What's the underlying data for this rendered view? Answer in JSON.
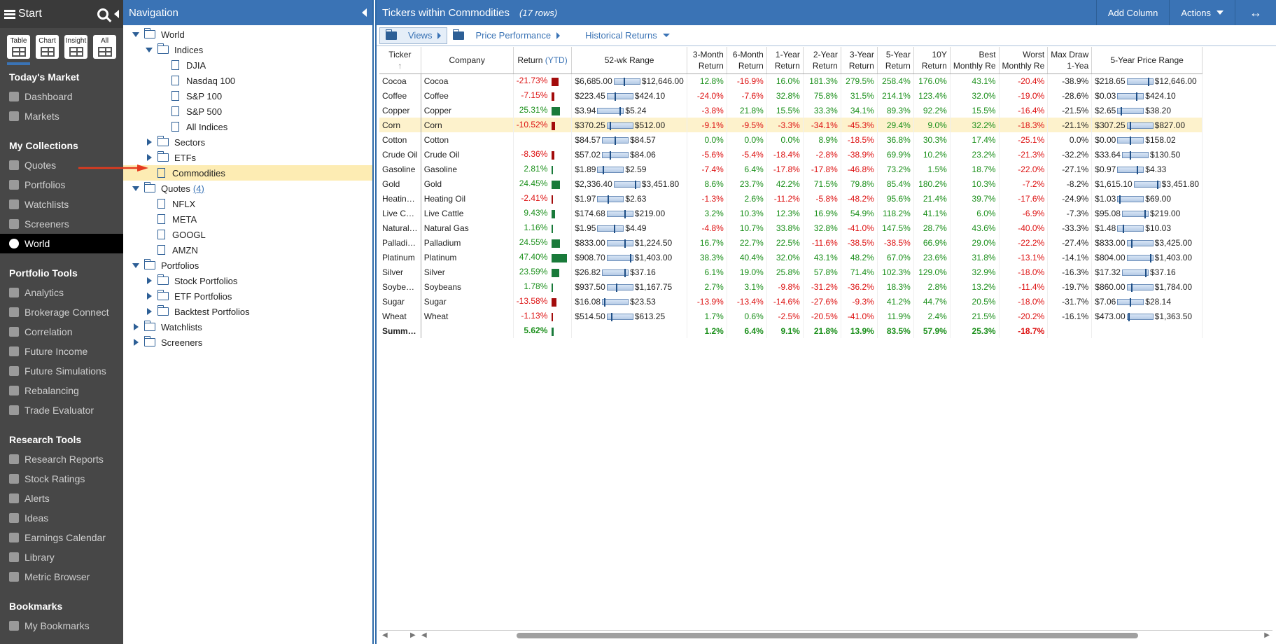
{
  "sidebar": {
    "start_label": "Start",
    "views": [
      {
        "label": "Table",
        "icon": "table-icon"
      },
      {
        "label": "Chart",
        "icon": "chart-icon"
      },
      {
        "label": "Insight",
        "icon": "insight-icon"
      },
      {
        "label": "All",
        "icon": "all-icon"
      }
    ],
    "sections": [
      {
        "heading": "Today's Market",
        "items": [
          "Dashboard",
          "Markets"
        ]
      },
      {
        "heading": "My Collections",
        "items": [
          "Quotes",
          "Portfolios",
          "Watchlists",
          "Screeners",
          "World"
        ]
      },
      {
        "heading": "Portfolio Tools",
        "items": [
          "Analytics",
          "Brokerage Connect",
          "Correlation",
          "Future Income",
          "Future Simulations",
          "Rebalancing",
          "Trade Evaluator"
        ]
      },
      {
        "heading": "Research Tools",
        "items": [
          "Research Reports",
          "Stock Ratings",
          "Alerts",
          "Ideas",
          "Earnings Calendar",
          "Library",
          "Metric Browser"
        ]
      },
      {
        "heading": "Bookmarks",
        "items": [
          "My Bookmarks"
        ]
      }
    ],
    "selected": "World"
  },
  "nav": {
    "title": "Navigation",
    "tree": {
      "world": "World",
      "indices": "Indices",
      "djia": "DJIA",
      "nasdaq": "Nasdaq 100",
      "sp100": "S&P 100",
      "sp500": "S&P 500",
      "all_indices": "All Indices",
      "sectors": "Sectors",
      "etfs": "ETFs",
      "commodities": "Commodities",
      "quotes": "Quotes",
      "quotes_count": "(4)",
      "nflx": "NFLX",
      "meta": "META",
      "googl": "GOOGL",
      "amzn": "AMZN",
      "portfolios": "Portfolios",
      "stock_portfolios": "Stock Portfolios",
      "etf_portfolios": "ETF Portfolios",
      "backtest_portfolios": "Backtest Portfolios",
      "watchlists": "Watchlists",
      "screeners": "Screeners"
    }
  },
  "main": {
    "title": "Tickers within Commodities",
    "rows_label": "(17 rows)",
    "add_column": "Add Column",
    "actions": "Actions",
    "expand": "↔",
    "toolbar": {
      "views": "Views",
      "price_performance": "Price Performance",
      "historical_returns": "Historical Returns"
    },
    "columns": {
      "ticker": "Ticker",
      "sort": "↑",
      "company": "Company",
      "ret": "Return",
      "ytd": "(YTD)",
      "range52": "52-wk Range",
      "m3a": "3-Month",
      "m3b": "Return",
      "m6a": "6-Month",
      "m6b": "Return",
      "y1a": "1-Year",
      "y1b": "Return",
      "y2a": "2-Year",
      "y2b": "Return",
      "y3a": "3-Year",
      "y3b": "Return",
      "y5a": "5-Year",
      "y5b": "Return",
      "y10a": "10Y",
      "y10b": "Return",
      "besta": "Best",
      "bestb": "Monthly Re",
      "worsta": "Worst",
      "worstb": "Monthly Re",
      "maxda": "Max Draw",
      "maxdb": "1-Yea",
      "range5": "5-Year Price Range"
    },
    "rows": [
      {
        "ticker": "Cocoa",
        "company": "Cocoa",
        "ytd": "-21.73%",
        "ytd_v": -21.73,
        "lo52": "$6,685.00",
        "hi52": "$12,646.00",
        "r52": 0.4,
        "m3": "12.8%",
        "m6": "-16.9%",
        "y1": "16.0%",
        "y2": "181.3%",
        "y3": "279.5%",
        "y5": "258.4%",
        "y10": "176.0%",
        "best": "43.1%",
        "worst": "-20.4%",
        "maxd": "-38.9%",
        "lo5": "$218.65",
        "hi5": "$12,646.00",
        "r5": 0.85
      },
      {
        "ticker": "Coffee",
        "company": "Coffee",
        "ytd": "-7.15%",
        "ytd_v": -7.15,
        "lo52": "$223.45",
        "hi52": "$424.10",
        "r52": 0.3,
        "m3": "-24.0%",
        "m6": "-7.6%",
        "y1": "32.8%",
        "y2": "75.8%",
        "y3": "31.5%",
        "y5": "214.1%",
        "y10": "123.4%",
        "best": "32.0%",
        "worst": "-19.0%",
        "maxd": "-28.6%",
        "lo5": "$0.03",
        "hi5": "$424.10",
        "r5": 0.75
      },
      {
        "ticker": "Copper",
        "company": "Copper",
        "ytd": "25.31%",
        "ytd_v": 25.31,
        "lo52": "$3.94",
        "hi52": "$5.24",
        "r52": 0.9,
        "m3": "-3.8%",
        "m6": "21.8%",
        "y1": "15.5%",
        "y2": "33.3%",
        "y3": "34.1%",
        "y5": "89.3%",
        "y10": "92.2%",
        "best": "15.5%",
        "worst": "-16.4%",
        "maxd": "-21.5%",
        "lo5": "$2.65",
        "hi5": "$38.20",
        "r5": 0.1
      },
      {
        "ticker": "Corn",
        "company": "Corn",
        "ytd": "-10.52%",
        "ytd_v": -10.52,
        "lo52": "$370.25",
        "hi52": "$512.00",
        "r52": 0.1,
        "m3": "-9.1%",
        "m6": "-9.5%",
        "y1": "-3.3%",
        "y2": "-34.1%",
        "y3": "-45.3%",
        "y5": "29.4%",
        "y10": "9.0%",
        "best": "32.2%",
        "worst": "-18.3%",
        "maxd": "-21.1%",
        "lo5": "$307.25",
        "hi5": "$827.00",
        "r5": 0.1,
        "hl": true
      },
      {
        "ticker": "Cotton",
        "company": "Cotton",
        "ytd": "",
        "ytd_v": 0,
        "lo52": "$84.57",
        "hi52": "$84.57",
        "r52": 0.5,
        "m3": "0.0%",
        "m6": "0.0%",
        "y1": "0.0%",
        "y2": "8.9%",
        "y3": "-18.5%",
        "y5": "36.8%",
        "y10": "30.3%",
        "best": "17.4%",
        "worst": "-25.1%",
        "maxd": "0.0%",
        "lo5": "$0.00",
        "hi5": "$158.02",
        "r5": 0.5
      },
      {
        "ticker": "Crude Oil",
        "company": "Crude Oil",
        "ytd": "-8.36%",
        "ytd_v": -8.36,
        "lo52": "$57.02",
        "hi52": "$84.06",
        "r52": 0.3,
        "m3": "-5.6%",
        "m6": "-5.4%",
        "y1": "-18.4%",
        "y2": "-2.8%",
        "y3": "-38.9%",
        "y5": "69.9%",
        "y10": "10.2%",
        "best": "23.2%",
        "worst": "-21.3%",
        "maxd": "-32.2%",
        "lo5": "$33.64",
        "hi5": "$130.50",
        "r5": 0.3
      },
      {
        "ticker": "Gasoline",
        "company": "Gasoline",
        "ytd": "2.81%",
        "ytd_v": 2.81,
        "lo52": "$1.89",
        "hi52": "$2.59",
        "r52": 0.2,
        "m3": "-7.4%",
        "m6": "6.4%",
        "y1": "-17.8%",
        "y2": "-17.8%",
        "y3": "-46.8%",
        "y5": "73.2%",
        "y10": "1.5%",
        "best": "18.7%",
        "worst": "-22.0%",
        "maxd": "-27.1%",
        "lo5": "$0.97",
        "hi5": "$4.33",
        "r5": 0.8
      },
      {
        "ticker": "Gold",
        "company": "Gold",
        "ytd": "24.45%",
        "ytd_v": 24.45,
        "lo52": "$2,336.40",
        "hi52": "$3,451.80",
        "r52": 0.85,
        "m3": "8.6%",
        "m6": "23.7%",
        "y1": "42.2%",
        "y2": "71.5%",
        "y3": "79.8%",
        "y5": "85.4%",
        "y10": "180.2%",
        "best": "10.3%",
        "worst": "-7.2%",
        "maxd": "-8.2%",
        "lo5": "$1,615.10",
        "hi5": "$3,451.80",
        "r5": 0.95
      },
      {
        "ticker": "Heatin…",
        "company": "Heating Oil",
        "ytd": "-2.41%",
        "ytd_v": -2.41,
        "lo52": "$1.97",
        "hi52": "$2.63",
        "r52": 0.4,
        "m3": "-1.3%",
        "m6": "2.6%",
        "y1": "-11.2%",
        "y2": "-5.8%",
        "y3": "-48.2%",
        "y5": "95.6%",
        "y10": "21.4%",
        "best": "39.7%",
        "worst": "-17.6%",
        "maxd": "-24.9%",
        "lo5": "$1.03",
        "hi5": "$69.00",
        "r5": 0.05
      },
      {
        "ticker": "Live C…",
        "company": "Live Cattle",
        "ytd": "9.43%",
        "ytd_v": 9.43,
        "lo52": "$174.68",
        "hi52": "$219.00",
        "r52": 0.7,
        "m3": "3.2%",
        "m6": "10.3%",
        "y1": "12.3%",
        "y2": "16.9%",
        "y3": "54.9%",
        "y5": "118.2%",
        "y10": "41.1%",
        "best": "6.0%",
        "worst": "-6.9%",
        "maxd": "-7.3%",
        "lo5": "$95.08",
        "hi5": "$219.00",
        "r5": 0.9
      },
      {
        "ticker": "Natural…",
        "company": "Natural Gas",
        "ytd": "1.16%",
        "ytd_v": 1.16,
        "lo52": "$1.95",
        "hi52": "$4.49",
        "r52": 0.65,
        "m3": "-4.8%",
        "m6": "10.7%",
        "y1": "33.8%",
        "y2": "32.8%",
        "y3": "-41.0%",
        "y5": "147.5%",
        "y10": "28.7%",
        "best": "43.6%",
        "worst": "-40.0%",
        "maxd": "-33.3%",
        "lo5": "$1.48",
        "hi5": "$10.03",
        "r5": 0.2
      },
      {
        "ticker": "Palladi…",
        "company": "Palladium",
        "ytd": "24.55%",
        "ytd_v": 24.55,
        "lo52": "$833.00",
        "hi52": "$1,224.50",
        "r52": 0.7,
        "m3": "16.7%",
        "m6": "22.7%",
        "y1": "22.5%",
        "y2": "-11.6%",
        "y3": "-38.5%",
        "y5": "-38.5%",
        "y10": "66.9%",
        "best": "29.0%",
        "worst": "-22.2%",
        "maxd": "-27.4%",
        "lo5": "$833.00",
        "hi5": "$3,425.00",
        "r5": 0.15
      },
      {
        "ticker": "Platinum",
        "company": "Platinum",
        "ytd": "47.40%",
        "ytd_v": 47.4,
        "lo52": "$908.70",
        "hi52": "$1,403.00",
        "r52": 0.95,
        "m3": "38.3%",
        "m6": "40.4%",
        "y1": "32.0%",
        "y2": "43.1%",
        "y3": "48.2%",
        "y5": "67.0%",
        "y10": "23.6%",
        "best": "31.8%",
        "worst": "-13.1%",
        "maxd": "-14.1%",
        "lo5": "$804.00",
        "hi5": "$1,403.00",
        "r5": 0.95
      },
      {
        "ticker": "Silver",
        "company": "Silver",
        "ytd": "23.59%",
        "ytd_v": 23.59,
        "lo52": "$26.82",
        "hi52": "$37.16",
        "r52": 0.9,
        "m3": "6.1%",
        "m6": "19.0%",
        "y1": "25.8%",
        "y2": "57.8%",
        "y3": "71.4%",
        "y5": "102.3%",
        "y10": "129.0%",
        "best": "32.9%",
        "worst": "-18.0%",
        "maxd": "-16.3%",
        "lo5": "$17.32",
        "hi5": "$37.16",
        "r5": 0.95
      },
      {
        "ticker": "Soybe…",
        "company": "Soybeans",
        "ytd": "1.78%",
        "ytd_v": 1.78,
        "lo52": "$937.50",
        "hi52": "$1,167.75",
        "r52": 0.35,
        "m3": "2.7%",
        "m6": "3.1%",
        "y1": "-9.8%",
        "y2": "-31.2%",
        "y3": "-36.2%",
        "y5": "18.3%",
        "y10": "2.8%",
        "best": "13.2%",
        "worst": "-11.4%",
        "maxd": "-19.7%",
        "lo5": "$860.00",
        "hi5": "$1,784.00",
        "r5": 0.15
      },
      {
        "ticker": "Sugar",
        "company": "Sugar",
        "ytd": "-13.58%",
        "ytd_v": -13.58,
        "lo52": "$16.08",
        "hi52": "$23.53",
        "r52": 0.05,
        "m3": "-13.9%",
        "m6": "-13.4%",
        "y1": "-14.6%",
        "y2": "-27.6%",
        "y3": "-9.3%",
        "y5": "41.2%",
        "y10": "44.7%",
        "best": "20.5%",
        "worst": "-18.0%",
        "maxd": "-31.7%",
        "lo5": "$7.06",
        "hi5": "$28.14",
        "r5": 0.5
      },
      {
        "ticker": "Wheat",
        "company": "Wheat",
        "ytd": "-1.13%",
        "ytd_v": -1.13,
        "lo52": "$514.50",
        "hi52": "$613.25",
        "r52": 0.15,
        "m3": "1.7%",
        "m6": "0.6%",
        "y1": "-2.5%",
        "y2": "-20.5%",
        "y3": "-41.0%",
        "y5": "11.9%",
        "y10": "2.4%",
        "best": "21.5%",
        "worst": "-20.2%",
        "maxd": "-16.1%",
        "lo5": "$473.00",
        "hi5": "$1,363.50",
        "r5": 0.05
      }
    ],
    "summary": {
      "ticker": "Summ…",
      "ytd": "5.62%",
      "ytd_v": 5.62,
      "m3": "1.2%",
      "m6": "6.4%",
      "y1": "9.1%",
      "y2": "21.8%",
      "y3": "13.9%",
      "y5": "83.5%",
      "y10": "57.9%",
      "best": "25.3%",
      "worst": "-18.7%"
    }
  },
  "colors": {
    "header_blue": "#3a73b5",
    "positive": "#1a8f1a",
    "negative": "#dd1111",
    "selected_row": "#fdf2cc",
    "bar_pos": "#197a3a",
    "bar_neg": "#a30c0c"
  }
}
